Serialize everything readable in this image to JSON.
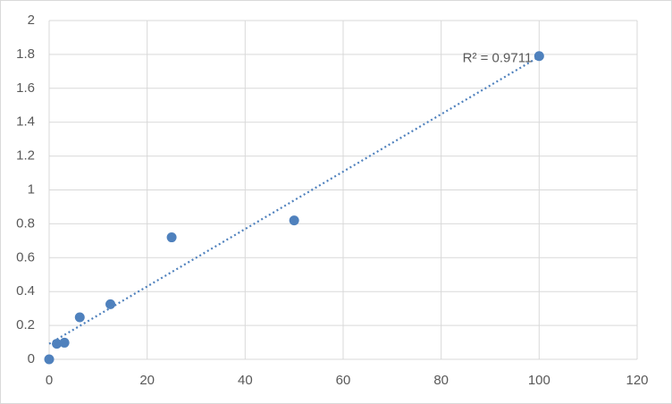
{
  "chart_data": {
    "type": "scatter",
    "x": [
      0,
      1.5625,
      3.125,
      6.25,
      12.5,
      25,
      50,
      100
    ],
    "series": [
      {
        "color": "#4f81bd",
        "values": [
          0,
          0.092,
          0.098,
          0.248,
          0.325,
          0.72,
          0.82,
          1.79
        ]
      }
    ],
    "trendline": {
      "kind": "linear",
      "style": "dotted",
      "annotation": "R² = 0.9711"
    },
    "xlim": [
      0,
      120
    ],
    "xticks": [
      0,
      20,
      40,
      60,
      80,
      100,
      120
    ],
    "ylim": [
      0,
      2
    ],
    "yticks": [
      0,
      0.2,
      0.4,
      0.6,
      0.8,
      1,
      1.2,
      1.4,
      1.6,
      1.8,
      2
    ],
    "grid": true
  }
}
